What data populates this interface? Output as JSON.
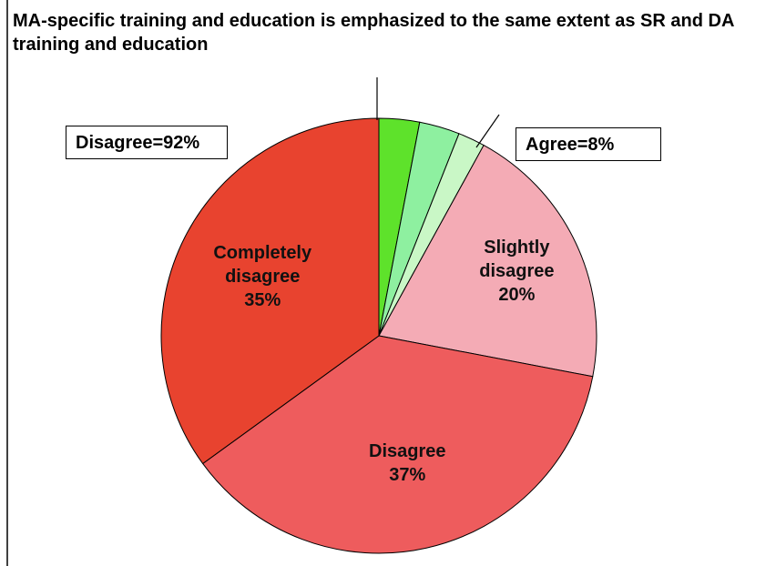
{
  "chart_data": {
    "type": "pie",
    "title": "MA-specific training and education is emphasized to the same extent as SR and DA training and education",
    "categories": [
      null,
      null,
      null,
      "Slightly disagree",
      "Disagree",
      "Completely disagree"
    ],
    "values": [
      3,
      3,
      2,
      20,
      37,
      35
    ],
    "value_labels": [
      null,
      null,
      null,
      "20%",
      "37%",
      "35%"
    ],
    "colors": [
      "#5ee22b",
      "#8ef0a0",
      "#c9f7c6",
      "#f4abb5",
      "#ee5c5d",
      "#e8432f"
    ],
    "annotations": [
      "Disagree=92%",
      "Agree=8%"
    ]
  }
}
